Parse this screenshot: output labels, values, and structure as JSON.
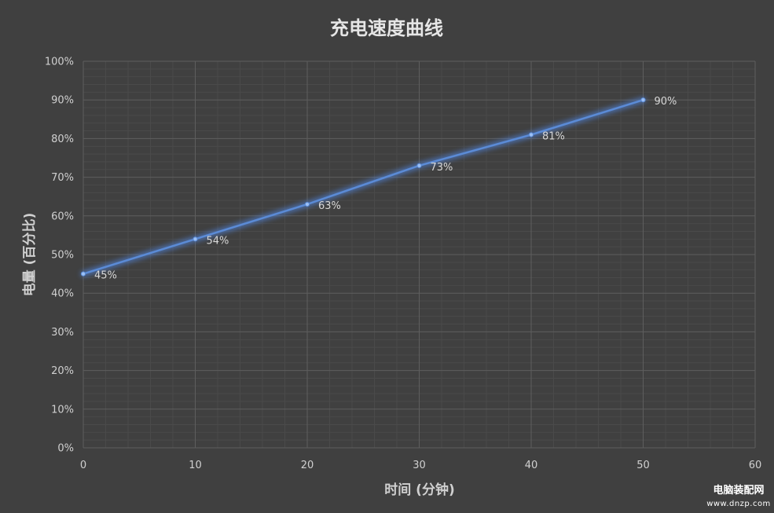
{
  "chart_data": {
    "type": "line",
    "title": "充电速度曲线",
    "xlabel": "时间 (分钟)",
    "ylabel": "电量 (百分比)",
    "x": [
      0,
      10,
      20,
      30,
      40,
      50
    ],
    "series": [
      {
        "values": [
          45,
          54,
          63,
          73,
          81,
          90
        ],
        "data_labels": [
          "45%",
          "54%",
          "63%",
          "73%",
          "81%",
          "90%"
        ],
        "color": "#5b8bd6"
      }
    ],
    "xlim": [
      0,
      60
    ],
    "ylim": [
      0,
      100
    ],
    "x_ticks": [
      0,
      10,
      20,
      30,
      40,
      50,
      60
    ],
    "x_tick_labels": [
      "0",
      "10",
      "20",
      "30",
      "40",
      "50",
      "60"
    ],
    "y_ticks": [
      0,
      10,
      20,
      30,
      40,
      50,
      60,
      70,
      80,
      90,
      100
    ],
    "y_tick_labels": [
      "0%",
      "10%",
      "20%",
      "30%",
      "40%",
      "50%",
      "60%",
      "70%",
      "80%",
      "90%",
      "100%"
    ],
    "grid": true,
    "legend": "none",
    "colors": {
      "background": "#404040",
      "major_grid": "#5e5e5e",
      "minor_grid": "#4a4a4a",
      "line": "#5b8bd6",
      "glow": "#4f7fd0"
    }
  },
  "watermark": {
    "name": "电脑装配网",
    "url": "www.dnzp.com"
  }
}
